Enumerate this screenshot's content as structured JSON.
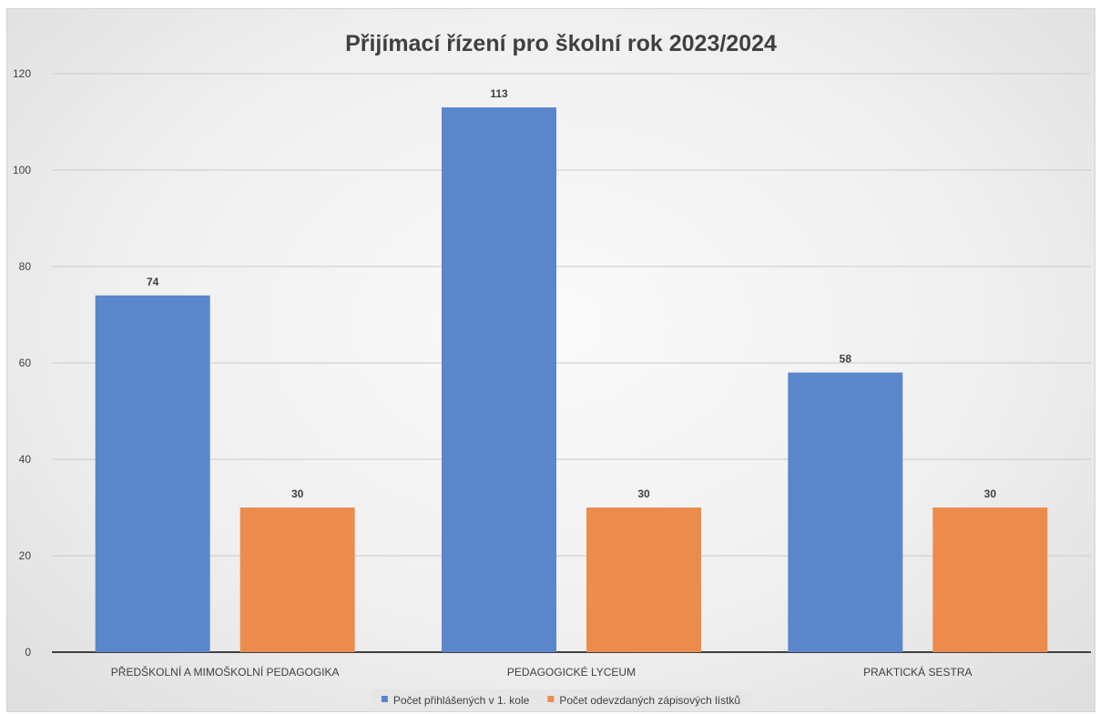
{
  "chart_data": {
    "type": "bar",
    "title": "Přijímací řízení pro školní rok 2023/2024",
    "xlabel": "",
    "ylabel": "",
    "categories": [
      "PŘEDŠKOLNÍ A MIMOŠKOLNÍ PEDAGOGIKA",
      "PEDAGOGICKÉ LYCEUM",
      "PRAKTICKÁ SESTRA"
    ],
    "series": [
      {
        "name": "Počet přihlášených v 1. kole",
        "values": [
          74,
          113,
          58
        ],
        "color": "#5b86cc"
      },
      {
        "name": "Počet odevzdaných zápisových lístků",
        "values": [
          30,
          30,
          30
        ],
        "color": "#ec8c4c"
      }
    ],
    "ylim": [
      0,
      120
    ],
    "yticks": [
      0,
      20,
      40,
      60,
      80,
      100,
      120
    ],
    "grid": true,
    "legend": "bottom",
    "data_labels": true
  }
}
